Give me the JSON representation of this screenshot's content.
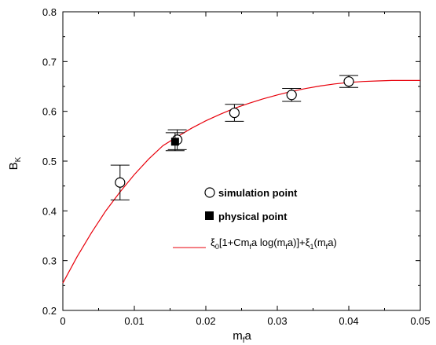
{
  "chart_data": {
    "type": "scatter",
    "xlabel": {
      "main": "m",
      "sub": "f",
      "tail": "a"
    },
    "ylabel": {
      "main": "B",
      "sub": "K"
    },
    "xlim": [
      0,
      0.05
    ],
    "ylim": [
      0.2,
      0.8
    ],
    "xticks": [
      0,
      0.01,
      0.02,
      0.03,
      0.04,
      0.05
    ],
    "xtick_labels": [
      "0",
      "0.01",
      "0.02",
      "0.03",
      "0.04",
      "0.05"
    ],
    "yticks": [
      0.2,
      0.3,
      0.4,
      0.5,
      0.6,
      0.7,
      0.8
    ],
    "ytick_labels": [
      "0.2",
      "0.3",
      "0.4",
      "0.5",
      "0.6",
      "0.7",
      "0.8"
    ],
    "grid": false,
    "legend_position": "center-right",
    "series": [
      {
        "name": "simulation point",
        "marker": "open-circle",
        "color": "#000000",
        "points": [
          {
            "x": 0.008,
            "y": 0.457,
            "yerr": 0.035
          },
          {
            "x": 0.016,
            "y": 0.543,
            "yerr": 0.02
          },
          {
            "x": 0.024,
            "y": 0.597,
            "yerr": 0.017
          },
          {
            "x": 0.032,
            "y": 0.633,
            "yerr": 0.013
          },
          {
            "x": 0.04,
            "y": 0.66,
            "yerr": 0.012
          }
        ]
      },
      {
        "name": "physical point",
        "marker": "filled-square",
        "color": "#000000",
        "points": [
          {
            "x": 0.0157,
            "y": 0.539,
            "yerr": 0.018
          }
        ]
      },
      {
        "type": "line",
        "color": "#e8000b",
        "legend_parts": [
          {
            "t": "ξ",
            "sub": false
          },
          {
            "t": "0",
            "sub": true
          },
          {
            "t": "[1+Cm",
            "sub": false
          },
          {
            "t": "f",
            "sub": true
          },
          {
            "t": "a log(m",
            "sub": false
          },
          {
            "t": "f",
            "sub": true
          },
          {
            "t": "a)]+ξ",
            "sub": false
          },
          {
            "t": "1",
            "sub": true
          },
          {
            "t": "(m",
            "sub": false
          },
          {
            "t": "f",
            "sub": true
          },
          {
            "t": "a)",
            "sub": false
          }
        ],
        "points": [
          {
            "x": 0.0,
            "y": 0.255
          },
          {
            "x": 0.002,
            "y": 0.308
          },
          {
            "x": 0.004,
            "y": 0.356
          },
          {
            "x": 0.006,
            "y": 0.4
          },
          {
            "x": 0.008,
            "y": 0.438
          },
          {
            "x": 0.01,
            "y": 0.473
          },
          {
            "x": 0.012,
            "y": 0.504
          },
          {
            "x": 0.014,
            "y": 0.531
          },
          {
            "x": 0.016,
            "y": 0.549
          },
          {
            "x": 0.018,
            "y": 0.566
          },
          {
            "x": 0.02,
            "y": 0.581
          },
          {
            "x": 0.022,
            "y": 0.594
          },
          {
            "x": 0.024,
            "y": 0.606
          },
          {
            "x": 0.026,
            "y": 0.616
          },
          {
            "x": 0.028,
            "y": 0.625
          },
          {
            "x": 0.03,
            "y": 0.633
          },
          {
            "x": 0.032,
            "y": 0.64
          },
          {
            "x": 0.034,
            "y": 0.646
          },
          {
            "x": 0.036,
            "y": 0.651
          },
          {
            "x": 0.038,
            "y": 0.655
          },
          {
            "x": 0.04,
            "y": 0.658
          },
          {
            "x": 0.042,
            "y": 0.66
          },
          {
            "x": 0.044,
            "y": 0.661
          },
          {
            "x": 0.046,
            "y": 0.662
          },
          {
            "x": 0.048,
            "y": 0.662
          },
          {
            "x": 0.05,
            "y": 0.662
          }
        ]
      }
    ]
  }
}
